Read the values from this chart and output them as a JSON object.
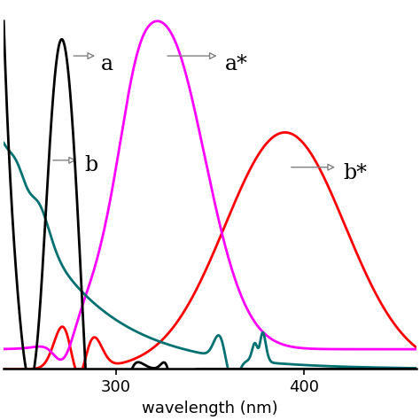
{
  "xlim": [
    240,
    460
  ],
  "ylim": [
    0,
    1.05
  ],
  "xlabel": "wavelength (nm)",
  "xlabel_fontsize": 13,
  "tick_fontsize": 13,
  "background_color": "#ffffff"
}
